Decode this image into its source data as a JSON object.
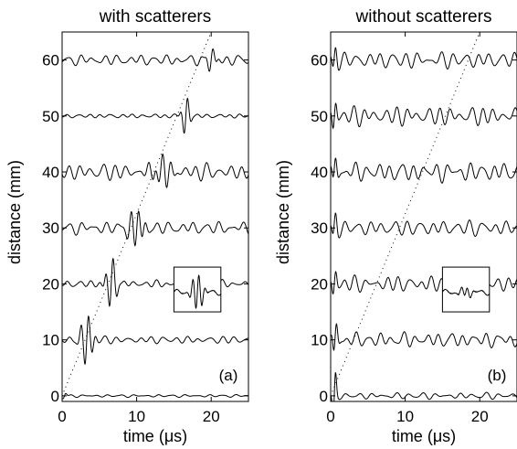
{
  "chart_data": [
    {
      "type": "line",
      "panel_tag": "(a)",
      "title": "with scatterers",
      "xlabel": "time (μs)",
      "ylabel": "distance (mm)",
      "xlim": [
        0,
        25
      ],
      "ylim": [
        -1,
        65
      ],
      "xticks": [
        0,
        10,
        20
      ],
      "yticks": [
        0,
        10,
        20,
        30,
        40,
        50,
        60
      ],
      "grid": false,
      "legend": "none",
      "traces": [
        {
          "offset": 0,
          "bursts": [
            {
              "t": 0.3,
              "amp": 0.6,
              "width": 0.4
            }
          ],
          "noise": 0.25
        },
        {
          "offset": 10,
          "bursts": [
            {
              "t": 3.3,
              "amp": 4.5,
              "width": 0.9
            }
          ],
          "noise": 0.7
        },
        {
          "offset": 20,
          "bursts": [
            {
              "t": 6.6,
              "amp": 4.5,
              "width": 0.8
            }
          ],
          "noise": 0.7
        },
        {
          "offset": 30,
          "bursts": [
            {
              "t": 10,
              "amp": 3.5,
              "width": 1.1
            }
          ],
          "noise": 1.2
        },
        {
          "offset": 40,
          "bursts": [
            {
              "t": 13.3,
              "amp": 2.5,
              "width": 1.5
            }
          ],
          "noise": 1.6
        },
        {
          "offset": 50,
          "bursts": [
            {
              "t": 16.6,
              "amp": 3.5,
              "width": 0.6
            }
          ],
          "noise": 0.4
        },
        {
          "offset": 60,
          "bursts": [
            {
              "t": 20,
              "amp": 2.0,
              "width": 0.7
            }
          ],
          "noise": 1.0
        }
      ],
      "dotted_line": {
        "x": [
          0,
          20
        ],
        "y": [
          0,
          65
        ]
      },
      "inset": {
        "x": [
          15,
          21.3
        ],
        "y": [
          15,
          23
        ],
        "burst_amp": 3.5
      }
    },
    {
      "type": "line",
      "panel_tag": "(b)",
      "title": "without scatterers",
      "xlabel": "time (μs)",
      "ylabel": "distance (mm)",
      "xlim": [
        0,
        25
      ],
      "ylim": [
        -1,
        65
      ],
      "xticks": [
        0,
        10,
        20
      ],
      "yticks": [
        0,
        10,
        20,
        30,
        40,
        50,
        60
      ],
      "grid": false,
      "legend": "none",
      "traces": [
        {
          "offset": 0,
          "bursts": [
            {
              "t": 0.5,
              "amp": 6.0,
              "width": 0.3
            }
          ],
          "noise": 0.6
        },
        {
          "offset": 10,
          "bursts": [
            {
              "t": 0.6,
              "amp": 4.0,
              "width": 0.4
            }
          ],
          "noise": 1.4
        },
        {
          "offset": 20,
          "bursts": [
            {
              "t": 0.5,
              "amp": 3.0,
              "width": 0.4
            }
          ],
          "noise": 1.5
        },
        {
          "offset": 30,
          "bursts": [
            {
              "t": 0.5,
              "amp": 3.0,
              "width": 0.4
            }
          ],
          "noise": 1.5
        },
        {
          "offset": 40,
          "bursts": [
            {
              "t": 0.5,
              "amp": 3.5,
              "width": 0.4
            }
          ],
          "noise": 1.8
        },
        {
          "offset": 50,
          "bursts": [
            {
              "t": 0.5,
              "amp": 3.5,
              "width": 0.4
            }
          ],
          "noise": 1.8
        },
        {
          "offset": 60,
          "bursts": [
            {
              "t": 0.5,
              "amp": 3.0,
              "width": 0.4
            }
          ],
          "noise": 1.6
        }
      ],
      "dotted_line": {
        "x": [
          0,
          20
        ],
        "y": [
          0,
          65
        ]
      },
      "inset": {
        "x": [
          15,
          21.3
        ],
        "y": [
          15,
          23
        ],
        "burst_amp": 1.0
      }
    }
  ]
}
